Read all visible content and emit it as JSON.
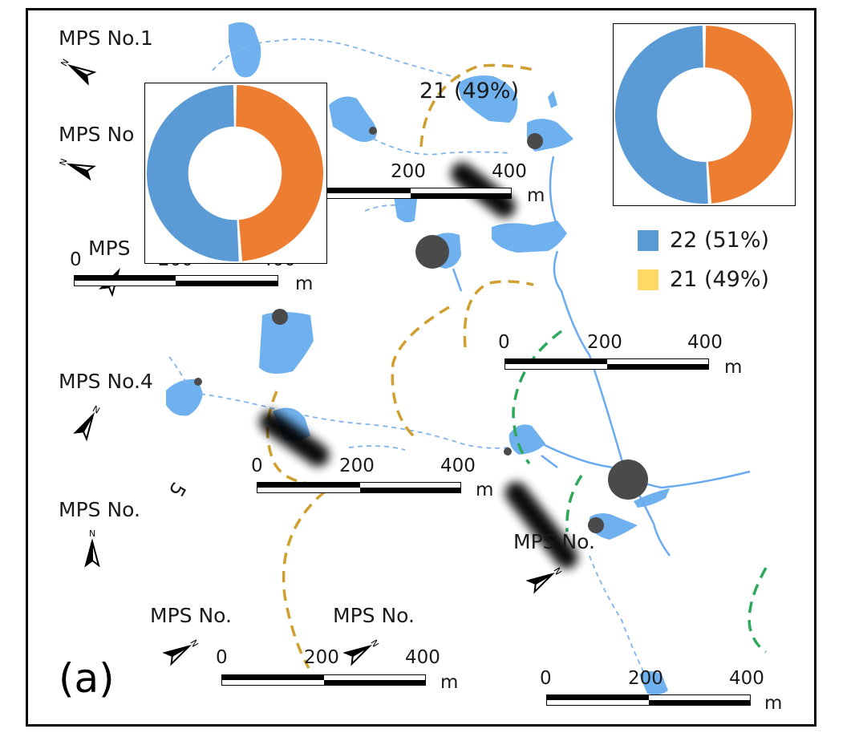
{
  "panel_label": "(a)",
  "colors": {
    "lake": "#6fb1ee",
    "river": "#6aaaf0",
    "stream_dashed": "#7fb4ea",
    "arc_gold": "#cf9f2f",
    "arc_green": "#2ea85a",
    "point": "#4a4a4a",
    "donut_blue": "#5b9bd5",
    "donut_orange": "#ed7d31",
    "legend_blue": "#5b9bd5",
    "legend_yellow": "#ffd966"
  },
  "station_labels": {
    "mps1": "MPS No.1",
    "mps2": "MPS No",
    "mps3": "MPS",
    "mps4": "MPS No.4",
    "mps5": "MPS No.",
    "mps5_rot": "5",
    "mps6": "MPS No.",
    "mps7": "MPS No.",
    "mps8": "MPS No."
  },
  "scale_bars": {
    "unit": "m",
    "bar1": {
      "t0": "0",
      "t1": "200",
      "t2": "400"
    },
    "bar2": {
      "t1": "200",
      "t2": "400"
    },
    "bar3": {
      "t0": "0",
      "t1": "200",
      "t2": "400"
    },
    "bar4": {
      "t0": "0",
      "t1": "200",
      "t2": "400"
    },
    "bar5": {
      "t0": "0",
      "t1": "200",
      "t2": "400"
    },
    "bar6": {
      "t0": "0",
      "t1": "200",
      "t2": "400"
    }
  },
  "donut_label": "21 (49%)",
  "legend": [
    {
      "text": "22 (51%)",
      "color": "#5b9bd5"
    },
    {
      "text": "21 (49%)",
      "color": "#ffd966"
    }
  ],
  "chart_data": [
    {
      "type": "pie",
      "categories": [
        "22",
        "21"
      ],
      "values": [
        51,
        49
      ]
    },
    {
      "type": "pie",
      "categories": [
        "22",
        "21"
      ],
      "values": [
        51,
        49
      ]
    }
  ],
  "icons": [
    "north-arrow-icon"
  ]
}
